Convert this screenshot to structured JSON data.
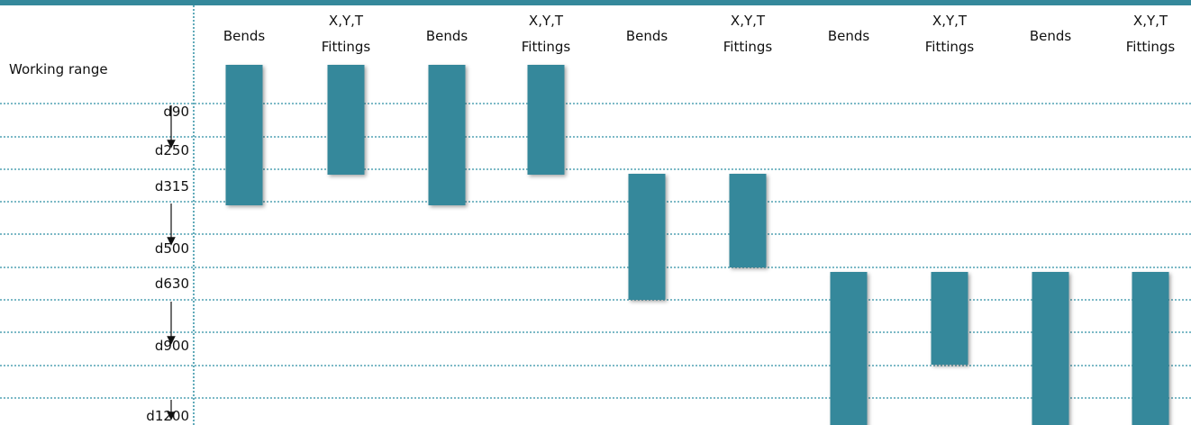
{
  "chart_data": {
    "type": "bar",
    "title": "",
    "ylabel": "Working range",
    "y_ticks": [
      "d90",
      "d250",
      "d315",
      "d500",
      "d630",
      "d900",
      "d1200"
    ],
    "columns": [
      {
        "label": [
          "Bends"
        ],
        "range": [
          "d90",
          "d315"
        ]
      },
      {
        "label": [
          "X,Y,T",
          "Fittings"
        ],
        "range": [
          "d90",
          "d250"
        ]
      },
      {
        "label": [
          "Bends"
        ],
        "range": [
          "d90",
          "d315"
        ]
      },
      {
        "label": [
          "X,Y,T",
          "Fittings"
        ],
        "range": [
          "d90",
          "d250"
        ]
      },
      {
        "label": [
          "Bends"
        ],
        "range": [
          "d250",
          "d630"
        ]
      },
      {
        "label": [
          "X,Y,T",
          "Fittings"
        ],
        "range": [
          "d250",
          "d500"
        ]
      },
      {
        "label": [
          "Bends"
        ],
        "range": [
          "d500",
          "d1200"
        ]
      },
      {
        "label": [
          "X,Y,T",
          "Fittings"
        ],
        "range": [
          "d500",
          "d900"
        ]
      },
      {
        "label": [
          "Bends"
        ],
        "range": [
          "d500",
          "d1200"
        ]
      },
      {
        "label": [
          "X,Y,T",
          "Fittings"
        ],
        "range": [
          "d500",
          "d1200"
        ]
      }
    ],
    "grid": true,
    "legend": "none"
  },
  "colors": {
    "accent": "#34889b",
    "grid": "#2f8fa3",
    "text": "#111111"
  }
}
